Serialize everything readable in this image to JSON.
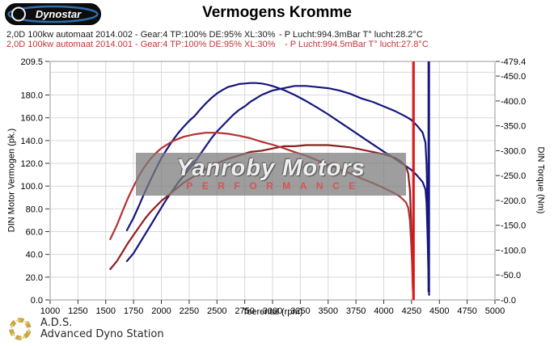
{
  "header": {
    "title": "Vermogens Kromme",
    "logo_text": "Dynostar"
  },
  "legend": {
    "runs": [
      {
        "left": "2,0D 100kw automaat 2014.002 - Gear:4 TP:100% DE:95% XL:30%",
        "right": "- P Lucht:994.3mBar T° lucht:28.2°C",
        "color": "#1c1c1c"
      },
      {
        "left": "2,0D 100kw automaat 2014.001 - Gear:4 TP:100% DE:95% XL:30%",
        "right": "- P Lucht:994.5mBar T° lucht:27.8°C",
        "color": "#c23535"
      }
    ]
  },
  "watermark": {
    "line1": "Yanroby Motors",
    "line2": "PERFORMANCE"
  },
  "footer": {
    "abbr": "A.D.S.",
    "name": "Advanced Dyno Station"
  },
  "chart_data": {
    "type": "line",
    "title": "Vermogens Kromme",
    "xlabel": "Toerental (rpm)",
    "ylabel_left": "DIN Motor Vermogen (pk.)",
    "ylabel_right": "DIN Torque (Nm)",
    "xlim": [
      1000,
      5000
    ],
    "ylim_left": [
      0,
      209.5
    ],
    "ylim_right": [
      0,
      479.4
    ],
    "x_ticks": [
      1000,
      1250,
      1500,
      1750,
      2000,
      2250,
      2500,
      2750,
      3000,
      3250,
      3500,
      3750,
      4000,
      4250,
      4500,
      4750,
      5000
    ],
    "y_left_ticks": [
      209.5,
      180,
      160,
      140,
      120,
      100,
      80,
      60,
      40,
      20,
      0
    ],
    "y_right_ticks": [
      479.4,
      450,
      400,
      350,
      300,
      250,
      200,
      150,
      100,
      50,
      0
    ],
    "grid": {
      "x_step": 250,
      "y_left_step": 20,
      "grid_on": true
    },
    "legend_position": "top",
    "series": [
      {
        "name": "run-2014-002-power-pk",
        "axis": "left",
        "color": "#16167e",
        "points": [
          [
            1690,
            34
          ],
          [
            1750,
            41
          ],
          [
            1800,
            49
          ],
          [
            1850,
            57
          ],
          [
            1900,
            65
          ],
          [
            1950,
            73
          ],
          [
            2000,
            81
          ],
          [
            2050,
            89
          ],
          [
            2100,
            96
          ],
          [
            2150,
            103
          ],
          [
            2200,
            109
          ],
          [
            2250,
            115
          ],
          [
            2300,
            121
          ],
          [
            2350,
            128
          ],
          [
            2400,
            135
          ],
          [
            2450,
            142
          ],
          [
            2500,
            148
          ],
          [
            2550,
            153
          ],
          [
            2600,
            158
          ],
          [
            2650,
            163
          ],
          [
            2700,
            167
          ],
          [
            2750,
            170
          ],
          [
            2800,
            174
          ],
          [
            2850,
            177
          ],
          [
            2900,
            180
          ],
          [
            2950,
            182
          ],
          [
            3000,
            184
          ],
          [
            3100,
            186
          ],
          [
            3200,
            188
          ],
          [
            3300,
            188
          ],
          [
            3400,
            187
          ],
          [
            3500,
            186
          ],
          [
            3600,
            184
          ],
          [
            3700,
            181
          ],
          [
            3800,
            177
          ],
          [
            3900,
            174
          ],
          [
            4000,
            170
          ],
          [
            4100,
            166
          ],
          [
            4200,
            161
          ],
          [
            4250,
            158
          ],
          [
            4300,
            153
          ],
          [
            4350,
            147
          ],
          [
            4375,
            138
          ],
          [
            4385,
            119
          ],
          [
            4390,
            100
          ],
          [
            4395,
            75
          ],
          [
            4400,
            44
          ],
          [
            4405,
            16
          ],
          [
            4408,
            7
          ]
        ]
      },
      {
        "name": "run-2014-002-torque-nm",
        "axis": "right",
        "color": "#16167e",
        "points": [
          [
            1690,
            140
          ],
          [
            1750,
            165
          ],
          [
            1800,
            190
          ],
          [
            1850,
            216
          ],
          [
            1900,
            240
          ],
          [
            1950,
            263
          ],
          [
            2000,
            285
          ],
          [
            2050,
            303
          ],
          [
            2100,
            320
          ],
          [
            2150,
            335
          ],
          [
            2200,
            348
          ],
          [
            2250,
            360
          ],
          [
            2300,
            370
          ],
          [
            2350,
            383
          ],
          [
            2400,
            395
          ],
          [
            2450,
            406
          ],
          [
            2500,
            415
          ],
          [
            2550,
            422
          ],
          [
            2600,
            428
          ],
          [
            2650,
            431
          ],
          [
            2700,
            434
          ],
          [
            2750,
            435
          ],
          [
            2800,
            436
          ],
          [
            2850,
            436
          ],
          [
            2900,
            435
          ],
          [
            2950,
            433
          ],
          [
            3000,
            430
          ],
          [
            3100,
            422
          ],
          [
            3200,
            412
          ],
          [
            3300,
            400
          ],
          [
            3400,
            387
          ],
          [
            3500,
            373
          ],
          [
            3600,
            358
          ],
          [
            3700,
            343
          ],
          [
            3800,
            328
          ],
          [
            3900,
            313
          ],
          [
            4000,
            298
          ],
          [
            4100,
            284
          ],
          [
            4200,
            269
          ],
          [
            4250,
            261
          ],
          [
            4300,
            250
          ],
          [
            4350,
            237
          ],
          [
            4375,
            222
          ],
          [
            4385,
            195
          ],
          [
            4390,
            160
          ],
          [
            4395,
            120
          ],
          [
            4400,
            70
          ],
          [
            4405,
            25
          ],
          [
            4408,
            10
          ]
        ]
      },
      {
        "name": "run-2014-001-power-pk",
        "axis": "left",
        "color": "#8f1f1f",
        "points": [
          [
            1540,
            27
          ],
          [
            1600,
            34
          ],
          [
            1650,
            42
          ],
          [
            1700,
            50
          ],
          [
            1750,
            57
          ],
          [
            1800,
            64
          ],
          [
            1850,
            71
          ],
          [
            1900,
            77
          ],
          [
            1950,
            82
          ],
          [
            2000,
            87
          ],
          [
            2100,
            95
          ],
          [
            2200,
            103
          ],
          [
            2300,
            109
          ],
          [
            2400,
            115
          ],
          [
            2500,
            120
          ],
          [
            2600,
            124
          ],
          [
            2700,
            127
          ],
          [
            2800,
            130
          ],
          [
            2900,
            131
          ],
          [
            3000,
            133
          ],
          [
            3100,
            135
          ],
          [
            3200,
            135
          ],
          [
            3300,
            136
          ],
          [
            3400,
            136
          ],
          [
            3500,
            136
          ],
          [
            3600,
            135
          ],
          [
            3700,
            134
          ],
          [
            3800,
            132
          ],
          [
            3900,
            130
          ],
          [
            4000,
            128
          ],
          [
            4100,
            125
          ],
          [
            4150,
            122
          ],
          [
            4200,
            117
          ],
          [
            4220,
            111
          ],
          [
            4235,
            97
          ],
          [
            4245,
            72
          ],
          [
            4255,
            42
          ],
          [
            4262,
            15
          ],
          [
            4268,
            5
          ]
        ]
      },
      {
        "name": "run-2014-001-torque-nm",
        "axis": "right",
        "color": "#b43232",
        "points": [
          [
            1540,
            122
          ],
          [
            1600,
            150
          ],
          [
            1650,
            178
          ],
          [
            1700,
            205
          ],
          [
            1750,
            228
          ],
          [
            1800,
            250
          ],
          [
            1850,
            268
          ],
          [
            1900,
            283
          ],
          [
            1950,
            295
          ],
          [
            2000,
            305
          ],
          [
            2100,
            319
          ],
          [
            2200,
            328
          ],
          [
            2300,
            333
          ],
          [
            2400,
            336
          ],
          [
            2500,
            336
          ],
          [
            2600,
            334
          ],
          [
            2700,
            330
          ],
          [
            2800,
            325
          ],
          [
            2900,
            318
          ],
          [
            3000,
            312
          ],
          [
            3100,
            305
          ],
          [
            3200,
            297
          ],
          [
            3300,
            290
          ],
          [
            3400,
            281
          ],
          [
            3500,
            272
          ],
          [
            3600,
            263
          ],
          [
            3700,
            254
          ],
          [
            3800,
            244
          ],
          [
            3900,
            235
          ],
          [
            4000,
            225
          ],
          [
            4100,
            214
          ],
          [
            4150,
            207
          ],
          [
            4200,
            196
          ],
          [
            4220,
            185
          ],
          [
            4235,
            160
          ],
          [
            4245,
            120
          ],
          [
            4255,
            70
          ],
          [
            4262,
            25
          ],
          [
            4268,
            8
          ]
        ]
      }
    ],
    "spikes": [
      {
        "name": "run-2014-001-end-spike",
        "x": 4268,
        "y_from": 0,
        "y_to": 209.5,
        "color": "#df1616"
      },
      {
        "name": "run-2014-002-end-spike",
        "x": 4405,
        "y_from": 7,
        "y_to": 209.5,
        "color": "#16167e"
      }
    ]
  }
}
